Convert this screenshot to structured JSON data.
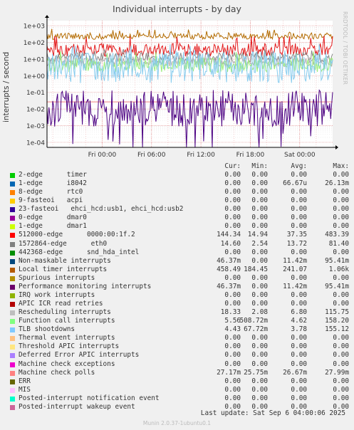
{
  "chart_data": {
    "type": "line",
    "title": "Individual interrupts - by day",
    "ylabel": "interrupts / second",
    "yscale": "log",
    "ylim": [
      5e-05,
      2000
    ],
    "yticks": [
      "1e+03",
      "1e+02",
      "1e+01",
      "1e+00",
      "1e-01",
      "1e-02",
      "1e-03",
      "1e-04"
    ],
    "xticks": [
      "Fri 00:00",
      "Fri 06:00",
      "Fri 12:00",
      "Fri 18:00",
      "Sat 00:00"
    ],
    "xtick_hours": [
      0,
      6,
      12,
      18,
      24
    ],
    "xrange_hours": [
      -6.7,
      28.0
    ],
    "grid": true,
    "series": [
      {
        "name": "Local timer interrupts",
        "color": "#b36b00",
        "typical": 240,
        "spread": 0.09,
        "spike": 650
      },
      {
        "name": "512000-edge 0000:00:1f.2",
        "color": "#e31a1c",
        "typical": 35,
        "spread": 0.18,
        "spike": 250
      },
      {
        "name": "1572864-edge eth0",
        "color": "#888888",
        "typical": 13,
        "spread": 0.14,
        "spike": 40
      },
      {
        "name": "Rescheduling interrupts",
        "color": "#b0b0b0",
        "typical": 6.5,
        "spread": 0.12,
        "spike": 18
      },
      {
        "name": "Function call interrupts",
        "color": "#99ee77",
        "typical": 4.5,
        "spread": 0.2,
        "spike": 30
      },
      {
        "name": "TLB shootdowns",
        "color": "#88ccee",
        "typical": 3.5,
        "spread": 0.45,
        "spike": 80
      },
      {
        "name": "Machine check polls",
        "color": "#f08080",
        "typical": 0.0267,
        "spread": 0.0,
        "spike": 0.028
      },
      {
        "name": "Performance monitoring interrupts",
        "color": "#4b0082",
        "typical": 0.011,
        "spread": 0.5,
        "spike": 0.045
      }
    ]
  },
  "legend": {
    "headers": {
      "cur": "Cur:",
      "min": "Min:",
      "avg": "Avg:",
      "max": "Max:"
    },
    "rows": [
      {
        "label": "2-edge      timer",
        "color": "#00cc00",
        "cur": "0.00",
        "min": "0.00",
        "avg": "0.00",
        "max": "0.00"
      },
      {
        "label": "1-edge      i8042",
        "color": "#0066b3",
        "cur": "0.00",
        "min": "0.00",
        "avg": "66.67u",
        "max": "26.13m"
      },
      {
        "label": "8-edge      rtc0",
        "color": "#ff8000",
        "cur": "0.00",
        "min": "0.00",
        "avg": "0.00",
        "max": "0.00"
      },
      {
        "label": "9-fasteoi   acpi",
        "color": "#ffcc00",
        "cur": "0.00",
        "min": "0.00",
        "avg": "0.00",
        "max": "0.00"
      },
      {
        "label": "23-fasteoi   ehci_hcd:usb1, ehci_hcd:usb2",
        "color": "#330099",
        "cur": "0.00",
        "min": "0.00",
        "avg": "0.00",
        "max": "0.00"
      },
      {
        "label": "0-edge      dmar0",
        "color": "#990099",
        "cur": "0.00",
        "min": "0.00",
        "avg": "0.00",
        "max": "0.00"
      },
      {
        "label": "1-edge      dmar1",
        "color": "#ccff00",
        "cur": "0.00",
        "min": "0.00",
        "avg": "0.00",
        "max": "0.00"
      },
      {
        "label": "512000-edge      0000:00:1f.2",
        "color": "#ff0000",
        "cur": "144.34",
        "min": "14.94",
        "avg": "37.35",
        "max": "483.39"
      },
      {
        "label": "1572864-edge      eth0",
        "color": "#808080",
        "cur": "14.60",
        "min": "2.54",
        "avg": "13.72",
        "max": "81.40"
      },
      {
        "label": "442368-edge      snd_hda_intel",
        "color": "#008f00",
        "cur": "0.00",
        "min": "0.00",
        "avg": "0.00",
        "max": "0.00"
      },
      {
        "label": "Non-maskable interrupts",
        "color": "#00487d",
        "cur": "46.37m",
        "min": "0.00",
        "avg": "11.42m",
        "max": "95.41m"
      },
      {
        "label": "Local timer interrupts",
        "color": "#b35a00",
        "cur": "458.49",
        "min": "184.45",
        "avg": "241.07",
        "max": "1.06k"
      },
      {
        "label": "Spurious interrupts",
        "color": "#b38f00",
        "cur": "0.00",
        "min": "0.00",
        "avg": "0.00",
        "max": "0.00"
      },
      {
        "label": "Performance monitoring interrupts",
        "color": "#6b006b",
        "cur": "46.37m",
        "min": "0.00",
        "avg": "11.42m",
        "max": "95.41m"
      },
      {
        "label": "IRQ work interrupts",
        "color": "#8fb300",
        "cur": "0.00",
        "min": "0.00",
        "avg": "0.00",
        "max": "0.00"
      },
      {
        "label": "APIC ICR read retries",
        "color": "#b30000",
        "cur": "0.00",
        "min": "0.00",
        "avg": "0.00",
        "max": "0.00"
      },
      {
        "label": "Rescheduling interrupts",
        "color": "#bebebe",
        "cur": "18.33",
        "min": "2.08",
        "avg": "6.80",
        "max": "115.75"
      },
      {
        "label": "Function call interrupts",
        "color": "#80ff80",
        "cur": "5.56",
        "min": "508.72m",
        "avg": "4.62",
        "max": "158.20"
      },
      {
        "label": "TLB shootdowns",
        "color": "#80c9ff",
        "cur": "4.43",
        "min": "67.72m",
        "avg": "3.78",
        "max": "155.12"
      },
      {
        "label": "Thermal event interrupts",
        "color": "#ffc080",
        "cur": "0.00",
        "min": "0.00",
        "avg": "0.00",
        "max": "0.00"
      },
      {
        "label": "Threshold APIC interrupts",
        "color": "#ffe680",
        "cur": "0.00",
        "min": "0.00",
        "avg": "0.00",
        "max": "0.00"
      },
      {
        "label": "Deferred Error APIC interrupts",
        "color": "#aa80ff",
        "cur": "0.00",
        "min": "0.00",
        "avg": "0.00",
        "max": "0.00"
      },
      {
        "label": "Machine check exceptions",
        "color": "#ee00cc",
        "cur": "0.00",
        "min": "0.00",
        "avg": "0.00",
        "max": "0.00"
      },
      {
        "label": "Machine check polls",
        "color": "#ff8080",
        "cur": "27.17m",
        "min": "25.75m",
        "avg": "26.67m",
        "max": "27.99m"
      },
      {
        "label": "ERR",
        "color": "#666600",
        "cur": "0.00",
        "min": "0.00",
        "avg": "0.00",
        "max": "0.00"
      },
      {
        "label": "MIS",
        "color": "#ffbfff",
        "cur": "0.00",
        "min": "0.00",
        "avg": "0.00",
        "max": "0.00"
      },
      {
        "label": "Posted-interrupt notification event",
        "color": "#00ffcc",
        "cur": "0.00",
        "min": "0.00",
        "avg": "0.00",
        "max": "0.00"
      },
      {
        "label": "Posted-interrupt wakeup event",
        "color": "#cc6699",
        "cur": "0.00",
        "min": "0.00",
        "avg": "0.00",
        "max": "0.00"
      }
    ]
  },
  "last_update": "Last update: Sat Sep  6 04:00:06 2025",
  "side_label": "RRDTOOL / TOBI OETIKER",
  "footer": "Munin 2.0.37-1ubuntu0.1"
}
